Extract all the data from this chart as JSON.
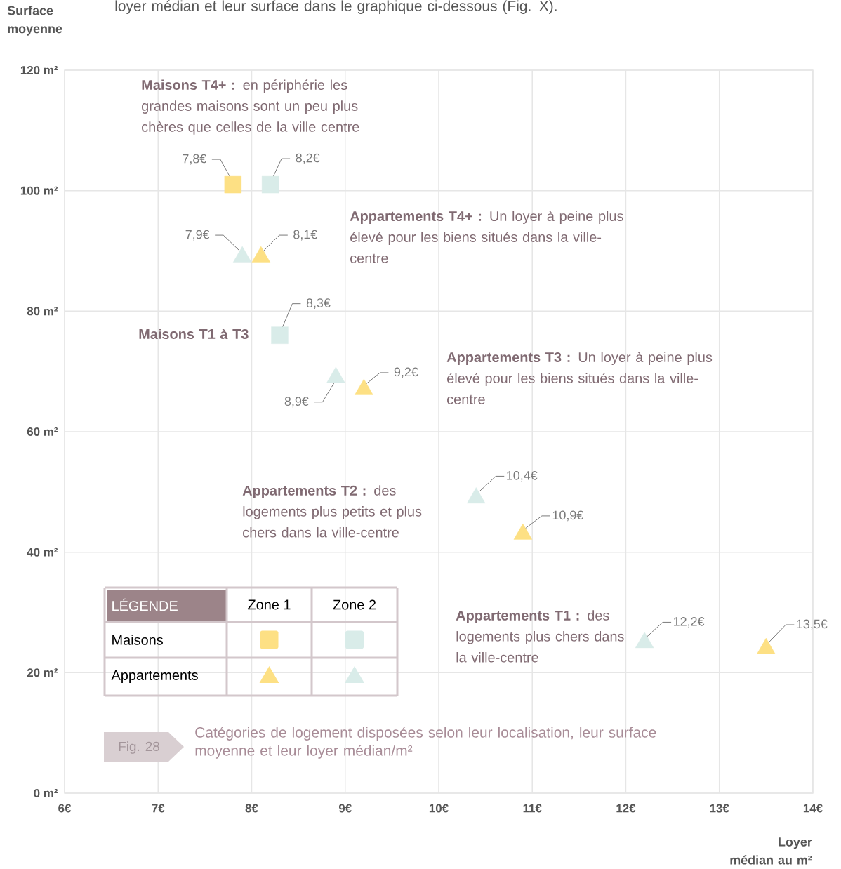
{
  "chart_data": {
    "type": "scatter",
    "xlabel": "Loyer médian au m²",
    "ylabel": "Surface moyenne",
    "legend_title": "LÉGENDE",
    "xlim": [
      6,
      14
    ],
    "ylim": [
      0,
      120
    ],
    "xticks": [
      {
        "value": 6,
        "label": "6€"
      },
      {
        "value": 7,
        "label": "7€"
      },
      {
        "value": 8,
        "label": "8€"
      },
      {
        "value": 9,
        "label": "9€"
      },
      {
        "value": 10,
        "label": "10€"
      },
      {
        "value": 11,
        "label": "11€"
      },
      {
        "value": 12,
        "label": "12€"
      },
      {
        "value": 13,
        "label": "13€"
      },
      {
        "value": 14,
        "label": "14€"
      }
    ],
    "yticks": [
      {
        "value": 0,
        "label": "0 m²"
      },
      {
        "value": 20,
        "label": "20 m²"
      },
      {
        "value": 40,
        "label": "40 m²"
      },
      {
        "value": 60,
        "label": "60 m²"
      },
      {
        "value": 80,
        "label": "80 m²"
      },
      {
        "value": 100,
        "label": "100 m²"
      },
      {
        "value": 120,
        "label": "120 m²"
      }
    ],
    "grid": true,
    "series": [
      {
        "color": "#fde084",
        "marker": "square",
        "x": [
          7.8
        ],
        "values": [
          101
        ]
      },
      {
        "color": "#d9ece9",
        "marker": "square",
        "x": [
          8.2,
          8.3
        ],
        "values": [
          101,
          76
        ]
      },
      {
        "color": "#fde084",
        "marker": "triangle",
        "x": [
          8.1,
          9.2,
          10.9,
          13.5
        ],
        "values": [
          89,
          67,
          43,
          24
        ]
      },
      {
        "color": "#d9ece9",
        "marker": "triangle",
        "x": [
          7.9,
          8.9,
          10.4,
          12.2
        ],
        "values": [
          89,
          69,
          49,
          25
        ]
      }
    ],
    "annotations": [
      "Zone 1",
      "Zone 2",
      "Maisons",
      "Appartements",
      "loyer médian et leur surface dans le graphique ci-dessous (Fig. X).",
      "**Maisons T4+ :** en périphérie les grandes maisons sont un peu plus chères que celles de la ville centre",
      "**Appartements T4+ :** Un loyer à peine plus élevé pour les biens situés dans la ville-centre",
      "Maisons  T1 à T3",
      "**Appartements T3 :** Un loyer à peine plus élevé pour les biens situés dans la ville-centre",
      "**Appartements T2 :** des logements plus petits et plus chers dans la ville-centre",
      "**Appartements T1 :** des logements plus chers dans la ville-centre",
      "Fig. 28",
      "Catégories de logement disposées selon leur localisation, leur surface moyenne et leur loyer médian/m²",
      {
        "text": "7,8€",
        "x": 7.8,
        "y": 101
      },
      {
        "text": "8,2€",
        "x": 8.2,
        "y": 101
      },
      {
        "text": "8,3€",
        "x": 8.3,
        "y": 76
      },
      {
        "text": "8,1€",
        "x": 8.1,
        "y": 89
      },
      {
        "text": "9,2€",
        "x": 9.2,
        "y": 67
      },
      {
        "text": "10,9€",
        "x": 10.9,
        "y": 43
      },
      {
        "text": "13,5€",
        "x": 13.5,
        "y": 24
      },
      {
        "text": "7,9€",
        "x": 7.9,
        "y": 89
      },
      {
        "text": "8,9€",
        "x": 8.9,
        "y": 69
      },
      {
        "text": "10,4€",
        "x": 10.4,
        "y": 49
      },
      {
        "text": "12,2€",
        "x": 12.2,
        "y": 25
      }
    ]
  }
}
